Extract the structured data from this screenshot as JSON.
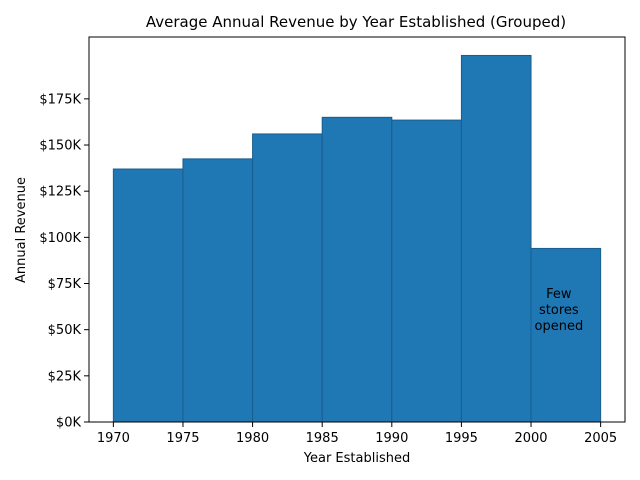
{
  "chart_data": {
    "type": "bar",
    "title": "Average Annual Revenue by Year Established (Grouped)",
    "xlabel": "Year Established",
    "ylabel": "Annual Revenue",
    "bins": [
      {
        "start": 1970,
        "end": 1975,
        "value": 137000
      },
      {
        "start": 1975,
        "end": 1980,
        "value": 142500
      },
      {
        "start": 1980,
        "end": 1985,
        "value": 156000
      },
      {
        "start": 1985,
        "end": 1990,
        "value": 165000
      },
      {
        "start": 1990,
        "end": 1995,
        "value": 163500
      },
      {
        "start": 1995,
        "end": 2000,
        "value": 198500
      },
      {
        "start": 2000,
        "end": 2005,
        "value": 94000
      }
    ],
    "xlim": [
      1968.25,
      2006.75
    ],
    "ylim": [
      0,
      208500
    ],
    "xticks": [
      1970,
      1975,
      1980,
      1985,
      1990,
      1995,
      2000,
      2005
    ],
    "xtick_labels": [
      "1970",
      "1975",
      "1980",
      "1985",
      "1990",
      "1995",
      "2000",
      "2005"
    ],
    "yticks": [
      0,
      25000,
      50000,
      75000,
      100000,
      125000,
      150000,
      175000
    ],
    "ytick_labels": [
      "$0K",
      "$25K",
      "$50K",
      "$75K",
      "$100K",
      "$125K",
      "$150K",
      "$175K"
    ],
    "annotation": {
      "lines": [
        "Few",
        "stores",
        "opened"
      ],
      "x": 2002,
      "y": 61000
    },
    "bar_color": "#1f77b4",
    "edge_color": "#1a5e8f",
    "grid": false
  }
}
